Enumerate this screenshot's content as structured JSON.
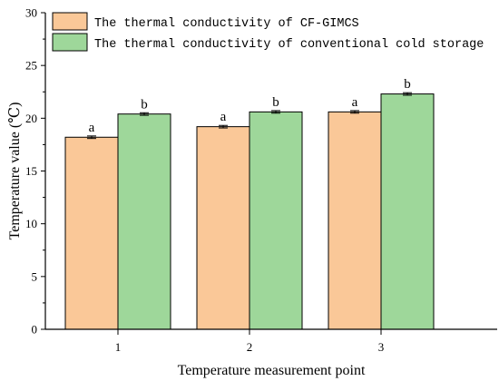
{
  "chart_data": {
    "type": "bar",
    "categories": [
      "1",
      "2",
      "3"
    ],
    "series": [
      {
        "name": "The thermal conductivity of CF-GIMCS",
        "values": [
          18.2,
          19.2,
          20.6
        ],
        "errors": [
          0.12,
          0.12,
          0.12
        ],
        "labels": [
          "a",
          "a",
          "a"
        ],
        "color": "#FAC898"
      },
      {
        "name": "The thermal conductivity of conventional cold storage",
        "values": [
          20.4,
          20.6,
          22.3
        ],
        "errors": [
          0.12,
          0.12,
          0.12
        ],
        "labels": [
          "b",
          "b",
          "b"
        ],
        "color": "#9ED79A"
      }
    ],
    "xlabel": "Temperature measurement point",
    "ylabel": "Temperature value (℃)",
    "ylim": [
      0,
      30
    ],
    "yticks": [
      0,
      5,
      10,
      15,
      20,
      25,
      30
    ],
    "grid": false,
    "legend": "top-left"
  }
}
